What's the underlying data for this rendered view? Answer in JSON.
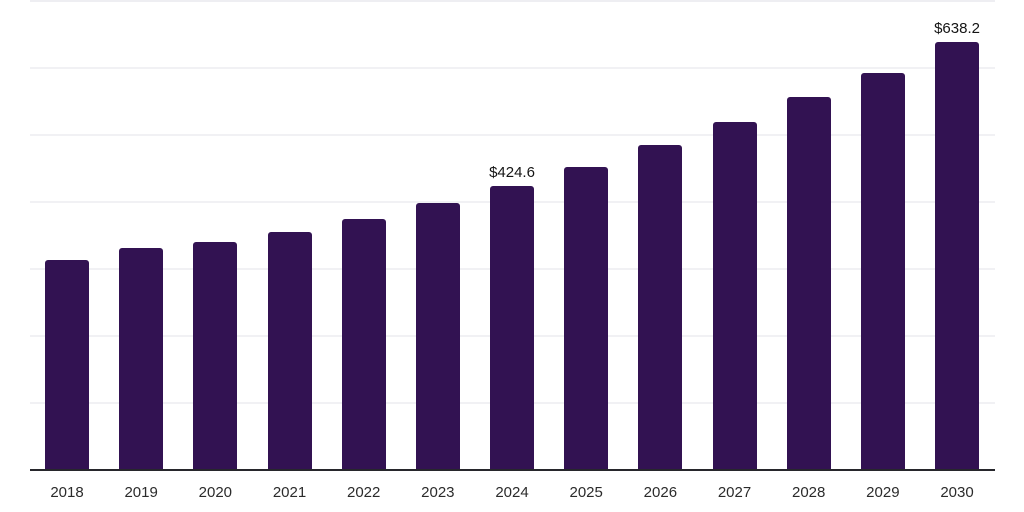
{
  "chart_data": {
    "type": "bar",
    "title": "",
    "xlabel": "",
    "ylabel": "",
    "categories": [
      "2018",
      "2019",
      "2020",
      "2021",
      "2022",
      "2023",
      "2024",
      "2025",
      "2026",
      "2027",
      "2028",
      "2029",
      "2030"
    ],
    "values": [
      314,
      331,
      340,
      355,
      374,
      398,
      424.6,
      452,
      485,
      519,
      556,
      593,
      638.2
    ],
    "data_labels": [
      null,
      null,
      null,
      null,
      null,
      null,
      "$424.6",
      null,
      null,
      null,
      null,
      null,
      "$638.2"
    ],
    "ylim": [
      0,
      700
    ],
    "gridline_step": 100,
    "grid": true,
    "legend": false,
    "colors": {
      "bar": "#321252",
      "gridline": "#f1f1f4",
      "top_gridline": "#eeeef2",
      "axis_line": "#27272c",
      "tick_label_text": "#2b2b2b",
      "data_label_text": "#141414",
      "background": "#ffffff"
    }
  }
}
